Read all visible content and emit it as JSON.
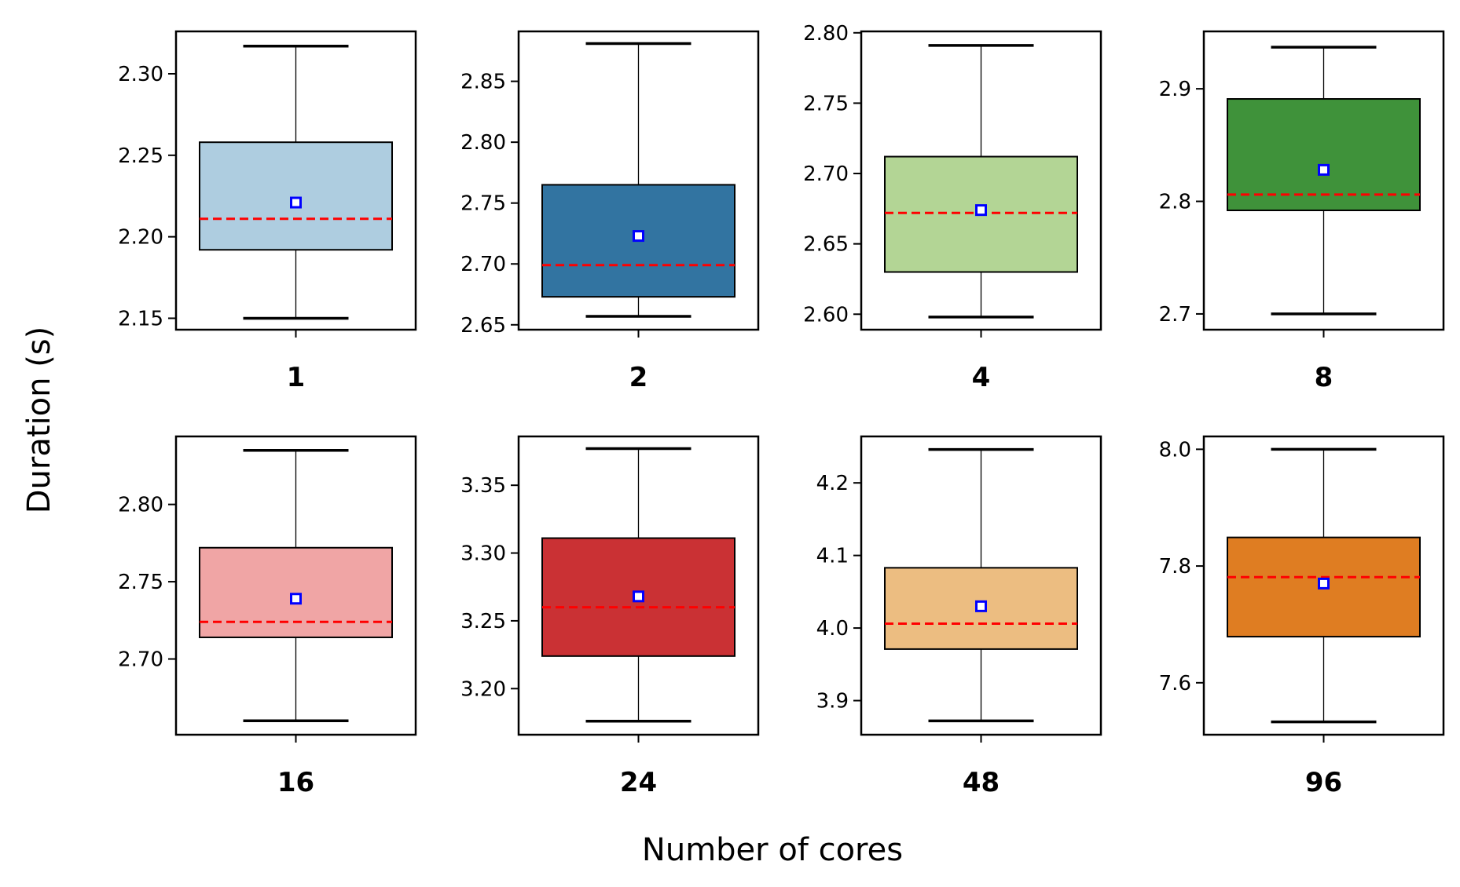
{
  "chart_data": {
    "type": "box",
    "xlabel": "Number of cores",
    "ylabel": "Duration (s)",
    "legend": "none",
    "grid": false,
    "mean_marker_color": "#0000ff",
    "median_line_color": "#ff0000",
    "median_line_style": "dashed",
    "panels": [
      {
        "category": "1",
        "color": "#aecde0",
        "ylim": [
          2.143,
          2.326
        ],
        "yticks": [
          2.15,
          2.2,
          2.25,
          2.3
        ],
        "tick_labels": [
          "2.15",
          "2.20",
          "2.25",
          "2.30"
        ],
        "whisker_low": 2.15,
        "q1": 2.192,
        "median": 2.211,
        "mean": 2.221,
        "q3": 2.258,
        "whisker_high": 2.317
      },
      {
        "category": "2",
        "color": "#3274a1",
        "ylim": [
          2.646,
          2.891
        ],
        "yticks": [
          2.65,
          2.7,
          2.75,
          2.8,
          2.85
        ],
        "tick_labels": [
          "2.65",
          "2.70",
          "2.75",
          "2.80",
          "2.85"
        ],
        "whisker_low": 2.657,
        "q1": 2.673,
        "median": 2.699,
        "mean": 2.723,
        "q3": 2.765,
        "whisker_high": 2.881
      },
      {
        "category": "4",
        "color": "#b3d595",
        "ylim": [
          2.589,
          2.801
        ],
        "yticks": [
          2.6,
          2.65,
          2.7,
          2.75,
          2.8
        ],
        "tick_labels": [
          "2.60",
          "2.65",
          "2.70",
          "2.75",
          "2.80"
        ],
        "whisker_low": 2.598,
        "q1": 2.63,
        "median": 2.672,
        "mean": 2.674,
        "q3": 2.712,
        "whisker_high": 2.791
      },
      {
        "category": "8",
        "color": "#3f923a",
        "ylim": [
          2.686,
          2.951
        ],
        "yticks": [
          2.7,
          2.8,
          2.9
        ],
        "tick_labels": [
          "2.7",
          "2.8",
          "2.9"
        ],
        "whisker_low": 2.7,
        "q1": 2.792,
        "median": 2.806,
        "mean": 2.828,
        "q3": 2.891,
        "whisker_high": 2.937
      },
      {
        "category": "16",
        "color": "#f0a5a5",
        "ylim": [
          2.651,
          2.844
        ],
        "yticks": [
          2.7,
          2.75,
          2.8
        ],
        "tick_labels": [
          "2.70",
          "2.75",
          "2.80"
        ],
        "whisker_low": 2.66,
        "q1": 2.714,
        "median": 2.724,
        "mean": 2.739,
        "q3": 2.772,
        "whisker_high": 2.835
      },
      {
        "category": "24",
        "color": "#ca3134",
        "ylim": [
          3.166,
          3.386
        ],
        "yticks": [
          3.2,
          3.25,
          3.3,
          3.35
        ],
        "tick_labels": [
          "3.20",
          "3.25",
          "3.30",
          "3.35"
        ],
        "whisker_low": 3.176,
        "q1": 3.224,
        "median": 3.26,
        "mean": 3.268,
        "q3": 3.311,
        "whisker_high": 3.377
      },
      {
        "category": "48",
        "color": "#ecbd81",
        "ylim": [
          3.853,
          4.264
        ],
        "yticks": [
          3.9,
          4.0,
          4.1,
          4.2
        ],
        "tick_labels": [
          "3.9",
          "4.0",
          "4.1",
          "4.2"
        ],
        "whisker_low": 3.872,
        "q1": 3.971,
        "median": 4.006,
        "mean": 4.03,
        "q3": 4.083,
        "whisker_high": 4.246
      },
      {
        "category": "96",
        "color": "#df7d22",
        "ylim": [
          7.511,
          8.022
        ],
        "yticks": [
          7.6,
          7.8,
          8.0
        ],
        "tick_labels": [
          "7.6",
          "7.8",
          "8.0"
        ],
        "whisker_low": 7.533,
        "q1": 7.679,
        "median": 7.781,
        "mean": 7.77,
        "q3": 7.849,
        "whisker_high": 8.0
      }
    ]
  }
}
